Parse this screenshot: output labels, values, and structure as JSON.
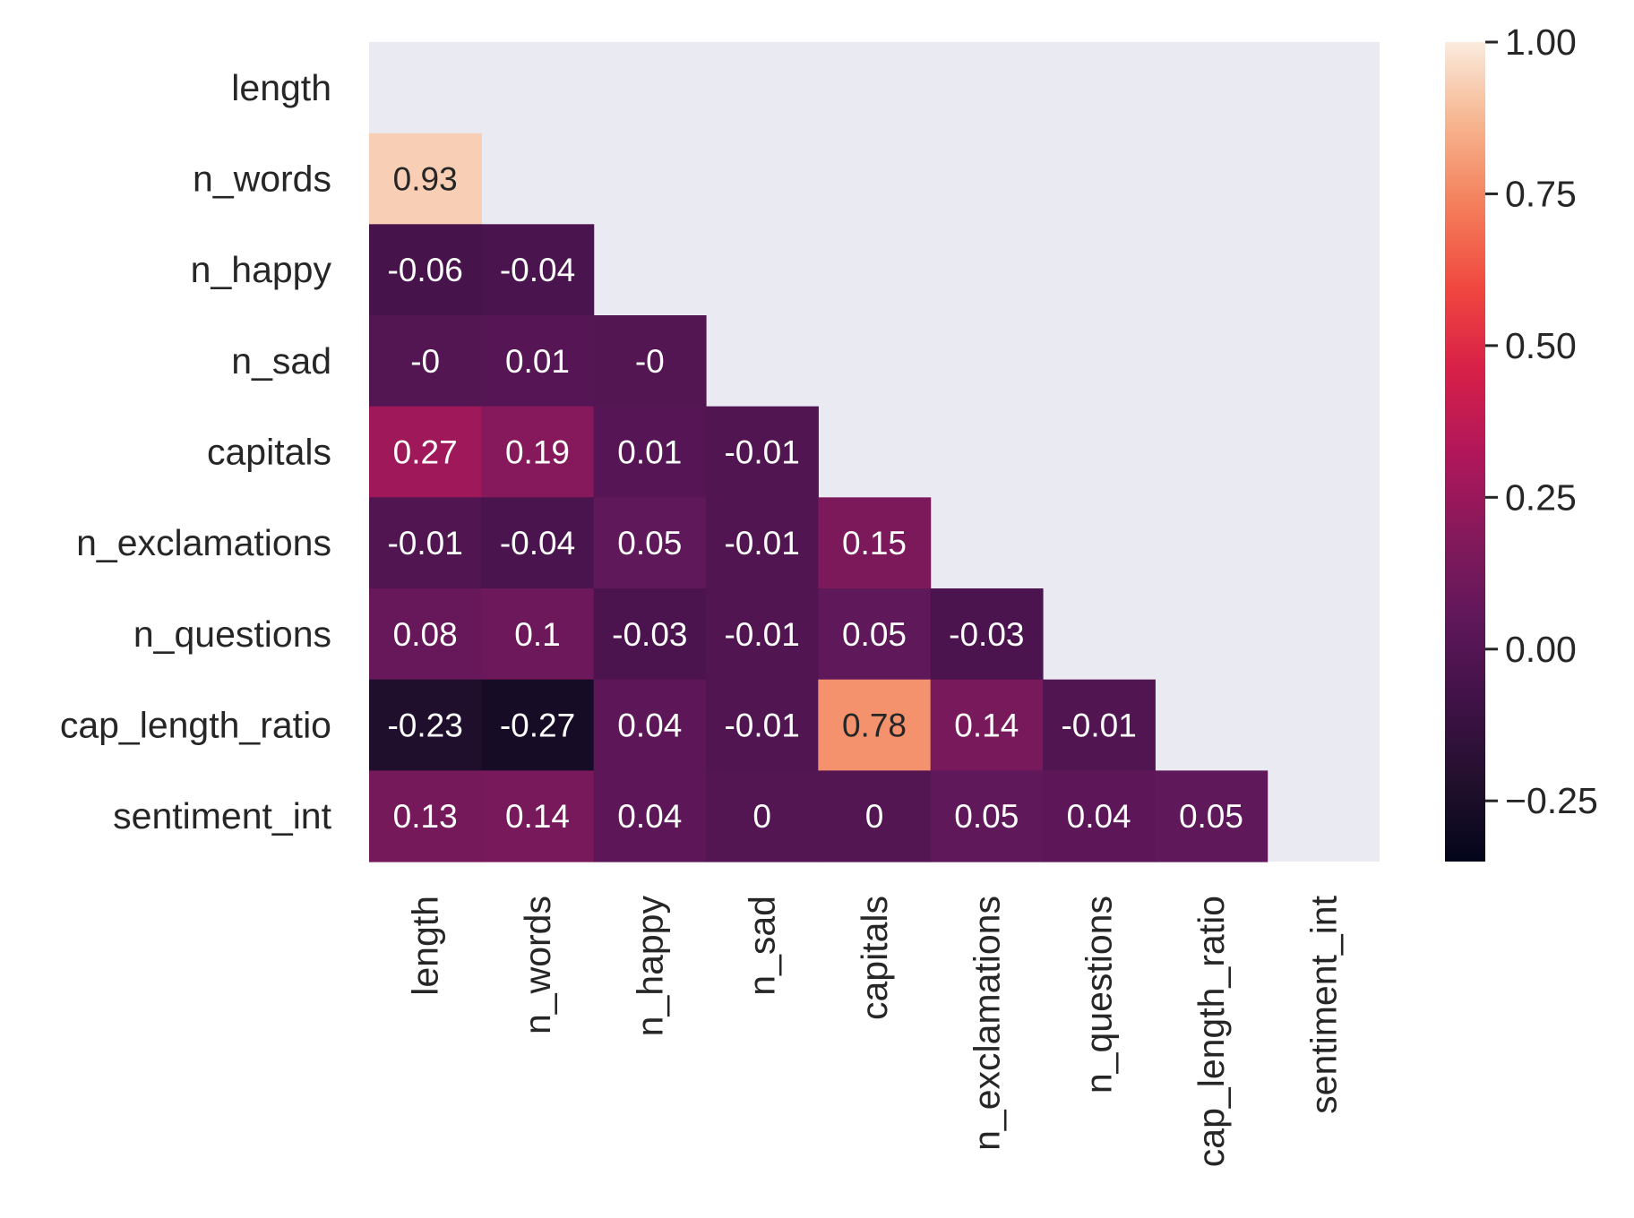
{
  "chart_data": {
    "type": "heatmap",
    "title": "",
    "xlabel": "",
    "ylabel": "",
    "row_labels": [
      "length",
      "n_words",
      "n_happy",
      "n_sad",
      "capitals",
      "n_exclamations",
      "n_questions",
      "cap_length_ratio",
      "sentiment_int"
    ],
    "col_labels": [
      "length",
      "n_words",
      "n_happy",
      "n_sad",
      "capitals",
      "n_exclamations",
      "n_questions",
      "cap_length_ratio",
      "sentiment_int"
    ],
    "mask": "upper triangle including diagonal",
    "values": [
      [
        null,
        null,
        null,
        null,
        null,
        null,
        null,
        null,
        null
      ],
      [
        0.93,
        null,
        null,
        null,
        null,
        null,
        null,
        null,
        null
      ],
      [
        -0.06,
        -0.04,
        null,
        null,
        null,
        null,
        null,
        null,
        null
      ],
      [
        -0.0,
        0.01,
        -0.0,
        null,
        null,
        null,
        null,
        null,
        null
      ],
      [
        0.27,
        0.19,
        0.01,
        -0.01,
        null,
        null,
        null,
        null,
        null
      ],
      [
        -0.01,
        -0.04,
        0.05,
        -0.01,
        0.15,
        null,
        null,
        null,
        null
      ],
      [
        0.08,
        0.1,
        -0.03,
        -0.01,
        0.05,
        -0.03,
        null,
        null,
        null
      ],
      [
        -0.23,
        -0.27,
        0.04,
        -0.01,
        0.78,
        0.14,
        -0.01,
        null,
        null
      ],
      [
        0.13,
        0.14,
        0.04,
        0.0,
        0.0,
        0.05,
        0.04,
        0.05,
        null
      ]
    ],
    "annotations": [
      [
        "",
        "",
        "",
        "",
        "",
        "",
        "",
        "",
        ""
      ],
      [
        "0.93",
        "",
        "",
        "",
        "",
        "",
        "",
        "",
        ""
      ],
      [
        "-0.06",
        "-0.04",
        "",
        "",
        "",
        "",
        "",
        "",
        ""
      ],
      [
        "-0",
        "0.01",
        "-0",
        "",
        "",
        "",
        "",
        "",
        ""
      ],
      [
        "0.27",
        "0.19",
        "0.01",
        "-0.01",
        "",
        "",
        "",
        "",
        ""
      ],
      [
        "-0.01",
        "-0.04",
        "0.05",
        "-0.01",
        "0.15",
        "",
        "",
        "",
        ""
      ],
      [
        "0.08",
        "0.1",
        "-0.03",
        "-0.01",
        "0.05",
        "-0.03",
        "",
        "",
        ""
      ],
      [
        "-0.23",
        "-0.27",
        "0.04",
        "-0.01",
        "0.78",
        "0.14",
        "-0.01",
        "",
        ""
      ],
      [
        "0.13",
        "0.14",
        "0.04",
        "0",
        "0",
        "0.05",
        "0.04",
        "0.05",
        ""
      ]
    ],
    "colorbar": {
      "min": -0.35,
      "max": 1.0,
      "ticks": [
        -0.25,
        0.0,
        0.25,
        0.5,
        0.75,
        1.0
      ],
      "tick_labels": [
        "−0.25",
        "0.00",
        "0.25",
        "0.50",
        "0.75",
        "1.00"
      ],
      "colormap": "rocket"
    },
    "grid": false,
    "legend": "colorbar-right"
  },
  "colors": {
    "masked_background": "#EAEAF2",
    "axis_text": "#262626"
  }
}
